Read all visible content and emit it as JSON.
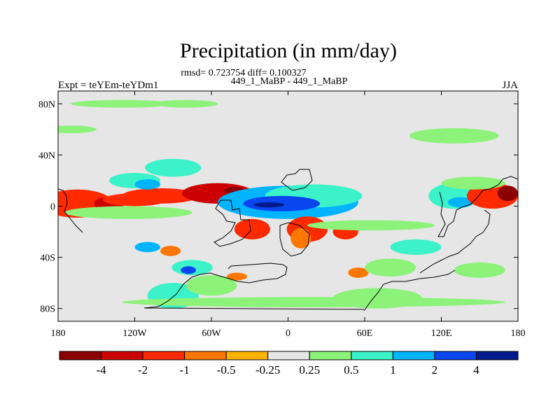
{
  "chart_data": {
    "type": "heatmap",
    "title": "Precipitation (in mm/day)",
    "subtitle_stats": "rmsd= 0.723754 diff= 0.100327",
    "subtitle_case": "449_1_MaBP - 449_1_MaBP",
    "experiment_label": "Expt = teYEm-teYDm1",
    "season_label": "JJA",
    "xlabel": "",
    "ylabel": "",
    "xlim": [
      -180,
      180
    ],
    "ylim": [
      -90,
      90
    ],
    "x_ticks": [
      {
        "value": -180,
        "label": "180"
      },
      {
        "value": -120,
        "label": "120W"
      },
      {
        "value": -60,
        "label": "60W"
      },
      {
        "value": 0,
        "label": "0"
      },
      {
        "value": 60,
        "label": "60E"
      },
      {
        "value": 120,
        "label": "120E"
      },
      {
        "value": 180,
        "label": "180"
      }
    ],
    "y_ticks": [
      {
        "value": 80,
        "label": "80N"
      },
      {
        "value": 40,
        "label": "40N"
      },
      {
        "value": 0,
        "label": "0"
      },
      {
        "value": -40,
        "label": "40S"
      },
      {
        "value": -80,
        "label": "80S"
      }
    ],
    "levels": [
      -4,
      -2,
      -1,
      -0.5,
      -0.25,
      0.25,
      0.5,
      1,
      2,
      4
    ],
    "level_labels": [
      "-4",
      "-2",
      "-1",
      "-0.5",
      "-0.25",
      "0.25",
      "0.5",
      "1",
      "2",
      "4"
    ],
    "colors": [
      "#8b0000",
      "#cc0000",
      "#ff2a00",
      "#ff7700",
      "#ffb300",
      "#e6e6e6",
      "#8cf27a",
      "#3cf2c8",
      "#00b4ff",
      "#0a46f0",
      "#001a8c"
    ],
    "background_color": "#e6e6e6",
    "features": [
      {
        "lon": -165,
        "lat": 2,
        "rlon": 28,
        "rlat": 11,
        "value": -1.5
      },
      {
        "lon": -140,
        "lat": 2,
        "rlon": 12,
        "rlat": 5,
        "value": -2.5
      },
      {
        "lon": -120,
        "lat": 5,
        "rlon": 25,
        "rlat": 5,
        "value": -1.5
      },
      {
        "lon": -100,
        "lat": 8,
        "rlon": 30,
        "rlat": 6,
        "value": -1.5
      },
      {
        "lon": -55,
        "lat": 10,
        "rlon": 28,
        "rlat": 8,
        "value": -2.2
      },
      {
        "lon": -42,
        "lat": 12,
        "rlon": 8,
        "rlat": 3,
        "value": -4.5
      },
      {
        "lon": -90,
        "lat": 30,
        "rlon": 22,
        "rlat": 7,
        "value": 0.5
      },
      {
        "lon": -120,
        "lat": 20,
        "rlon": 20,
        "rlat": 6,
        "value": 0.6
      },
      {
        "lon": -110,
        "lat": 17,
        "rlon": 10,
        "rlat": 4,
        "value": 1.2
      },
      {
        "lon": -125,
        "lat": -5,
        "rlon": 50,
        "rlat": 5,
        "value": 0.35
      },
      {
        "lon": 0,
        "lat": 3,
        "rlon": 55,
        "rlat": 13,
        "value": 1.3
      },
      {
        "lon": 20,
        "lat": 8,
        "rlon": 38,
        "rlat": 9,
        "value": 0.75
      },
      {
        "lon": -5,
        "lat": 2,
        "rlon": 30,
        "rlat": 6,
        "value": 2.5
      },
      {
        "lon": -15,
        "lat": 1,
        "rlon": 12,
        "rlat": 2,
        "value": 5
      },
      {
        "lon": -28,
        "lat": -18,
        "rlon": 14,
        "rlat": 8,
        "value": -1.5
      },
      {
        "lon": 15,
        "lat": -18,
        "rlon": 16,
        "rlat": 10,
        "value": -1.5
      },
      {
        "lon": 10,
        "lat": -25,
        "rlon": 8,
        "rlat": 8,
        "value": -0.7
      },
      {
        "lon": 45,
        "lat": -20,
        "rlon": 10,
        "rlat": 6,
        "value": -1.5
      },
      {
        "lon": 65,
        "lat": -15,
        "rlon": 50,
        "rlat": 4,
        "value": 0.35
      },
      {
        "lon": 130,
        "lat": 8,
        "rlon": 20,
        "rlat": 10,
        "value": 0.6
      },
      {
        "lon": 135,
        "lat": 3,
        "rlon": 10,
        "rlat": 4,
        "value": 1.3
      },
      {
        "lon": 160,
        "lat": 8,
        "rlon": 20,
        "rlat": 10,
        "value": -1.5
      },
      {
        "lon": 172,
        "lat": 10,
        "rlon": 8,
        "rlat": 6,
        "value": -4.5
      },
      {
        "lon": 145,
        "lat": 18,
        "rlon": 25,
        "rlat": 5,
        "value": 0.35
      },
      {
        "lon": -110,
        "lat": -32,
        "rlon": 10,
        "rlat": 4,
        "value": 1.3
      },
      {
        "lon": -92,
        "lat": -35,
        "rlon": 8,
        "rlat": 4,
        "value": -0.7
      },
      {
        "lon": -75,
        "lat": -48,
        "rlon": 16,
        "rlat": 6,
        "value": 0.75
      },
      {
        "lon": -78,
        "lat": -50,
        "rlon": 6,
        "rlat": 3,
        "value": 2.5
      },
      {
        "lon": -90,
        "lat": -70,
        "rlon": 20,
        "rlat": 10,
        "value": 0.75
      },
      {
        "lon": -60,
        "lat": -62,
        "rlon": 20,
        "rlat": 8,
        "value": 0.35
      },
      {
        "lon": -40,
        "lat": -55,
        "rlon": 8,
        "rlat": 3,
        "value": -0.7
      },
      {
        "lon": 55,
        "lat": -52,
        "rlon": 8,
        "rlat": 4,
        "value": -0.7
      },
      {
        "lon": 80,
        "lat": -48,
        "rlon": 20,
        "rlat": 7,
        "value": 0.35
      },
      {
        "lon": 100,
        "lat": -32,
        "rlon": 20,
        "rlat": 6,
        "value": 0.6
      },
      {
        "lon": 150,
        "lat": -50,
        "rlon": 20,
        "rlat": 6,
        "value": 0.35
      },
      {
        "lon": 20,
        "lat": -75,
        "rlon": 150,
        "rlat": 4,
        "value": 0.35
      },
      {
        "lon": 70,
        "lat": -72,
        "rlon": 35,
        "rlat": 8,
        "value": 0.35
      },
      {
        "lon": 130,
        "lat": 55,
        "rlon": 35,
        "rlat": 6,
        "value": 0.35
      },
      {
        "lon": -130,
        "lat": 80,
        "rlon": 40,
        "rlat": 3,
        "value": 0.35
      },
      {
        "lon": -80,
        "lat": 80,
        "rlon": 25,
        "rlat": 3,
        "value": 0.35
      },
      {
        "lon": -170,
        "lat": 60,
        "rlon": 20,
        "rlat": 3,
        "value": 0.35
      }
    ]
  }
}
